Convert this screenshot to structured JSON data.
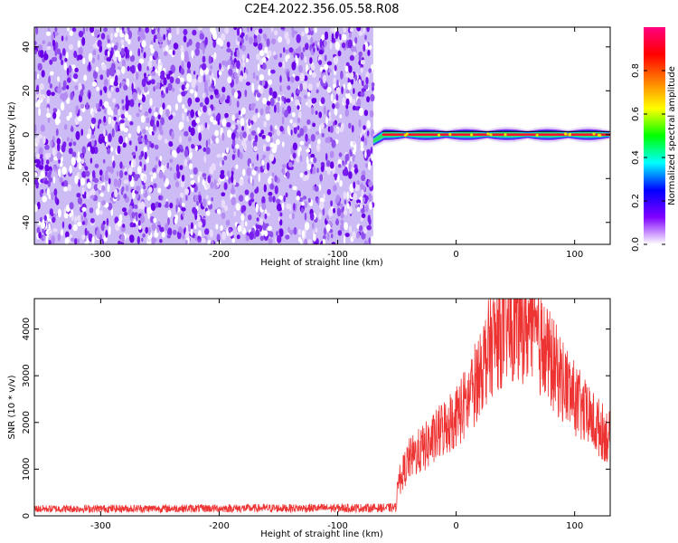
{
  "title": "C2E4.2022.356.05.58.R08",
  "chart_data": [
    {
      "type": "heatmap",
      "xlabel": "Height of straight line (km)",
      "ylabel": "Frequency (Hz)",
      "xlim": [
        -356,
        130
      ],
      "ylim": [
        -50,
        49
      ],
      "xticks": [
        -300,
        -200,
        -100,
        0,
        100
      ],
      "yticks": [
        -40,
        -20,
        0,
        20,
        40
      ],
      "noise_region_x": [
        -356,
        -70
      ],
      "signal": {
        "x_start": -70,
        "x_end": 130,
        "frequency": 0,
        "start_frequency": -3
      },
      "colorbar": {
        "label": "Normalized spectral amplitude",
        "range": [
          0,
          1
        ],
        "ticks": [
          "0.0",
          "0.2",
          "0.4",
          "0.6",
          "0.8"
        ],
        "colormap": [
          "#ffffff",
          "#8000ff",
          "#0000ff",
          "#00ffff",
          "#00ff00",
          "#ffff00",
          "#ff8000",
          "#ff0000",
          "#ff0080"
        ]
      }
    },
    {
      "type": "line",
      "xlabel": "Height of straight line (km)",
      "ylabel": "SNR (10 * v/v)",
      "xlim": [
        -356,
        130
      ],
      "ylim": [
        0,
        4650
      ],
      "xticks": [
        -300,
        -200,
        -100,
        0,
        100
      ],
      "yticks": [
        0,
        1000,
        2000,
        3000,
        4000
      ],
      "color": "#ee3333",
      "profile": [
        {
          "x": -356,
          "y": 150
        },
        {
          "x": -60,
          "y": 170
        },
        {
          "x": -51,
          "y": 180
        },
        {
          "x": -49,
          "y": 700
        },
        {
          "x": -40,
          "y": 1200
        },
        {
          "x": -30,
          "y": 1400
        },
        {
          "x": -20,
          "y": 1600
        },
        {
          "x": -10,
          "y": 1900
        },
        {
          "x": 0,
          "y": 2150
        },
        {
          "x": 10,
          "y": 2450
        },
        {
          "x": 20,
          "y": 3100
        },
        {
          "x": 30,
          "y": 3700
        },
        {
          "x": 40,
          "y": 4000
        },
        {
          "x": 50,
          "y": 4100
        },
        {
          "x": 60,
          "y": 4050
        },
        {
          "x": 70,
          "y": 3700
        },
        {
          "x": 80,
          "y": 3300
        },
        {
          "x": 90,
          "y": 2900
        },
        {
          "x": 100,
          "y": 2500
        },
        {
          "x": 110,
          "y": 2150
        },
        {
          "x": 120,
          "y": 1900
        },
        {
          "x": 130,
          "y": 1650
        }
      ]
    }
  ]
}
